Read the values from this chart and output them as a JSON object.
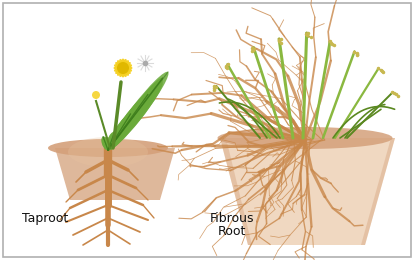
{
  "fig_width": 4.14,
  "fig_height": 2.6,
  "dpi": 100,
  "bg_color": "#ffffff",
  "border_color": "#b0b0b0",
  "label_taproot": "Taproot",
  "label_fibrous_line1": "Fibrous",
  "label_fibrous_line2": "Root",
  "label_fontsize": 9,
  "soil_color": "#d4a07a",
  "soil_light": "#e8c4a0",
  "root_color": "#c8874a",
  "root_dark": "#a06030",
  "leaf_color": "#6aaa3a",
  "leaf_dark": "#3a7a1a",
  "flower_color": "#f5d020",
  "flower_dark": "#e0b800",
  "grass_color": "#8ab840",
  "grass_dark": "#5a8820"
}
